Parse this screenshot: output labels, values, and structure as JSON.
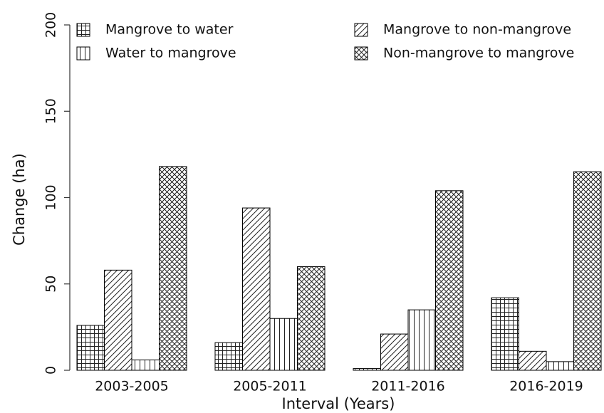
{
  "chart_data": {
    "type": "bar",
    "x_label": "Interval (Years)",
    "y_label": "Change (ha)",
    "categories": [
      "2003-2005",
      "2005-2011",
      "2011-2016",
      "2016-2019"
    ],
    "series": [
      {
        "name": "Mangrove to water",
        "color": "#000000",
        "pattern": "grid",
        "values": [
          26,
          16,
          1,
          42
        ]
      },
      {
        "name": "Mangrove to non-mangrove",
        "color": "#000000",
        "pattern": "diagonal",
        "values": [
          58,
          94,
          21,
          11
        ]
      },
      {
        "name": "Water to mangrove",
        "color": "#000000",
        "pattern": "vertical",
        "values": [
          6,
          30,
          35,
          5
        ]
      },
      {
        "name": "Non-mangrove to mangrove",
        "color": "#000000",
        "pattern": "crosshatch",
        "values": [
          118,
          60,
          104,
          115
        ]
      }
    ],
    "ylim": [
      0,
      200
    ],
    "yticks": [
      0,
      50,
      100,
      150,
      200
    ],
    "grid": false,
    "legend": "top"
  }
}
